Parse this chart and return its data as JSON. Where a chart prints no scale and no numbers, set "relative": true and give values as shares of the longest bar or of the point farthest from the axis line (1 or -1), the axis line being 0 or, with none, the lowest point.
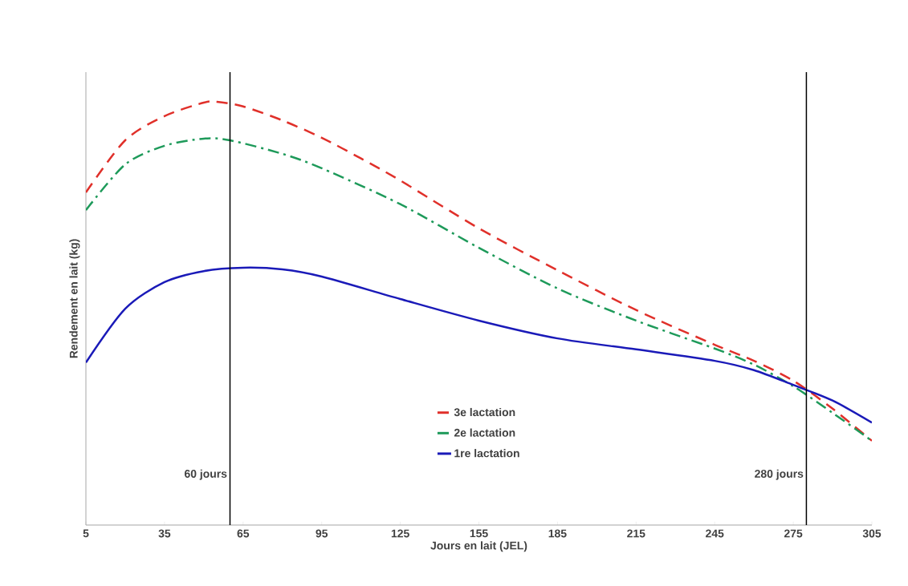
{
  "chart_data": {
    "type": "line",
    "relative": true,
    "xlabel": "Jours en lait (JEL)",
    "ylabel": "Rendement en lait (kg)",
    "xlim": [
      5,
      305
    ],
    "xticks": [
      5,
      35,
      65,
      95,
      125,
      155,
      185,
      215,
      245,
      275,
      305
    ],
    "legend": "bottom",
    "grid": false,
    "series": [
      {
        "name": "3e lactation",
        "color": "#e0302a",
        "line_style": "dashed",
        "x": [
          5,
          20,
          35,
          50,
          55,
          65,
          80,
          95,
          110,
          125,
          155,
          185,
          215,
          245,
          260,
          275,
          290,
          305
        ],
        "values": [
          0.786,
          0.909,
          0.966,
          0.998,
          1.0,
          0.989,
          0.956,
          0.915,
          0.866,
          0.814,
          0.701,
          0.602,
          0.508,
          0.426,
          0.388,
          0.341,
          0.275,
          0.199
        ]
      },
      {
        "name": "2e lactation",
        "color": "#1e9a5a",
        "line_style": "dashdot",
        "x": [
          5,
          20,
          35,
          50,
          60,
          80,
          95,
          125,
          155,
          185,
          215,
          245,
          260,
          275,
          290,
          305
        ],
        "values": [
          0.744,
          0.852,
          0.896,
          0.913,
          0.909,
          0.877,
          0.843,
          0.758,
          0.655,
          0.559,
          0.483,
          0.417,
          0.379,
          0.328,
          0.265,
          0.199
        ]
      },
      {
        "name": "1re lactation",
        "color": "#1a1ab8",
        "line_style": "solid",
        "x": [
          5,
          20,
          35,
          50,
          65,
          80,
          95,
          125,
          155,
          185,
          215,
          245,
          260,
          275,
          290,
          305
        ],
        "values": [
          0.384,
          0.511,
          0.574,
          0.6,
          0.608,
          0.604,
          0.587,
          0.534,
          0.483,
          0.441,
          0.415,
          0.388,
          0.366,
          0.331,
          0.294,
          0.242
        ]
      }
    ],
    "ref_lines": [
      {
        "axis": "x",
        "value": 60,
        "label": "60 jours",
        "color": "#000000"
      },
      {
        "axis": "x",
        "value": 280,
        "label": "280 jours",
        "color": "#000000"
      }
    ]
  }
}
